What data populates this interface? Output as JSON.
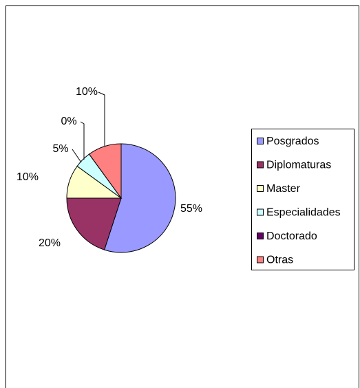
{
  "chart_data": {
    "type": "pie",
    "categories": [
      "Posgrados",
      "Diplomaturas",
      "Master",
      "Especialidades",
      "Doctorado",
      "Otras"
    ],
    "values": [
      55,
      20,
      10,
      5,
      0,
      10
    ],
    "value_labels": [
      "55%",
      "20%",
      "10%",
      "5%",
      "0%",
      "10%"
    ],
    "colors": [
      "#9999ff",
      "#993366",
      "#ffffcc",
      "#ccffff",
      "#660066",
      "#ff8080"
    ],
    "legend": "right"
  }
}
